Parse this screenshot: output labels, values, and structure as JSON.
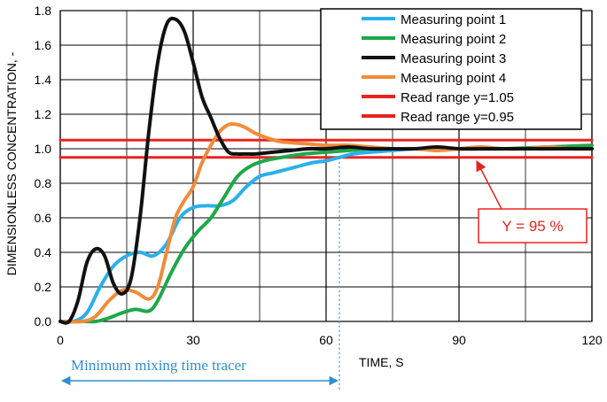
{
  "chart_data": {
    "type": "line",
    "xlabel": "TIME, S",
    "ylabel": "DIMENSIONLESS CONCENTRATION, -",
    "xlim": [
      0,
      120
    ],
    "ylim": [
      0,
      1.8
    ],
    "xticks": [
      0,
      30,
      60,
      90,
      120
    ],
    "yticks": [
      0.0,
      0.2,
      0.4,
      0.6,
      0.8,
      1.0,
      1.2,
      1.4,
      1.6,
      1.8
    ],
    "grid": true,
    "legend_position": "top-right",
    "series": [
      {
        "name": "Measuring point  1",
        "color": "#2ab0ec",
        "x": [
          0,
          3,
          6,
          9,
          12,
          15,
          18,
          21,
          24,
          27,
          30,
          33,
          36,
          39,
          42,
          45,
          48,
          51,
          54,
          57,
          60,
          63,
          66,
          70,
          75,
          80,
          85,
          90,
          95,
          100,
          105,
          110,
          115,
          120
        ],
        "y": [
          0,
          0,
          0.05,
          0.2,
          0.32,
          0.38,
          0.4,
          0.38,
          0.45,
          0.6,
          0.66,
          0.67,
          0.67,
          0.7,
          0.78,
          0.84,
          0.86,
          0.88,
          0.9,
          0.92,
          0.93,
          0.95,
          0.97,
          0.98,
          0.99,
          1.0,
          1.0,
          1.0,
          1.0,
          1.0,
          1.0,
          1.0,
          1.0,
          1.0
        ]
      },
      {
        "name": "Measuring point  2",
        "color": "#1ea84a",
        "x": [
          0,
          5,
          8,
          11,
          14,
          17,
          20,
          22,
          25,
          28,
          31,
          34,
          37,
          40,
          43,
          46,
          50,
          55,
          60,
          65,
          70,
          75,
          80,
          90,
          100,
          110,
          120
        ],
        "y": [
          0,
          0,
          0,
          0.02,
          0.05,
          0.07,
          0.06,
          0.12,
          0.28,
          0.42,
          0.52,
          0.6,
          0.72,
          0.84,
          0.9,
          0.93,
          0.95,
          0.97,
          0.98,
          0.99,
          1.0,
          1.0,
          1.0,
          1.0,
          1.0,
          1.01,
          1.02
        ]
      },
      {
        "name": "Measuring point  3",
        "color": "#111111",
        "x": [
          0,
          2,
          4,
          6,
          8,
          10,
          12,
          14,
          16,
          18,
          20,
          22,
          24,
          26,
          28,
          30,
          32,
          34,
          36,
          38,
          40,
          42,
          44,
          48,
          52,
          56,
          60,
          65,
          70,
          75,
          80,
          85,
          90,
          95,
          100,
          105,
          110,
          115,
          120
        ],
        "y": [
          0,
          0,
          0.12,
          0.34,
          0.42,
          0.38,
          0.22,
          0.16,
          0.25,
          0.6,
          1.1,
          1.5,
          1.72,
          1.75,
          1.68,
          1.5,
          1.3,
          1.18,
          1.06,
          0.98,
          0.97,
          0.97,
          0.97,
          0.98,
          0.99,
          1.0,
          1.0,
          1.01,
          1.0,
          1.0,
          1.0,
          1.01,
          1.0,
          1.0,
          1.0,
          1.0,
          1.0,
          1.0,
          1.0
        ]
      },
      {
        "name": "Measuring point  4",
        "color": "#f08c3a",
        "x": [
          0,
          5,
          8,
          11,
          14,
          17,
          20,
          22,
          24,
          26,
          28,
          30,
          32,
          34,
          36,
          38,
          40,
          42,
          44,
          47,
          50,
          55,
          60,
          65,
          70,
          75,
          80,
          85,
          90,
          95,
          100,
          105,
          110,
          115,
          120
        ],
        "y": [
          0,
          0,
          0.03,
          0.12,
          0.18,
          0.17,
          0.13,
          0.2,
          0.4,
          0.6,
          0.7,
          0.78,
          0.92,
          1.02,
          1.1,
          1.14,
          1.14,
          1.12,
          1.09,
          1.06,
          1.04,
          1.03,
          1.02,
          1.02,
          1.01,
          1.0,
          1.0,
          0.99,
          1.0,
          1.01,
          1.0,
          1.0,
          1.01,
          1.0,
          1.0
        ]
      },
      {
        "name": "Read range y=1.05",
        "color": "#e8231f",
        "x": [
          0,
          120
        ],
        "y": [
          1.05,
          1.05
        ]
      },
      {
        "name": "Read range y=0.95",
        "color": "#e8231f",
        "x": [
          0,
          120
        ],
        "y": [
          0.95,
          0.95
        ]
      }
    ],
    "annotations": [
      {
        "text": "Y = 95 %",
        "color": "#e8231f",
        "target_x": 63,
        "target_y": 0.95
      },
      {
        "text": "Minimum mixing time tracer",
        "color": "#2f8fd0",
        "x_range": [
          0,
          63
        ],
        "marker_x": 63
      }
    ]
  }
}
